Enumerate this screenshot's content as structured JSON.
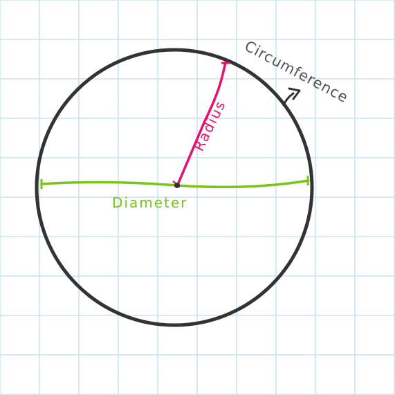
{
  "diagram": {
    "labels": {
      "circumference": "Circumference",
      "radius": "Radius",
      "diameter": "Diameter"
    },
    "colors": {
      "background": "#ffffff",
      "grid": "#c7e3f2",
      "circle": "#333333",
      "radius": "#e8106e",
      "diameter": "#7ac418",
      "circumference_label": "#555555",
      "circumference_arrow": "#333333"
    }
  }
}
